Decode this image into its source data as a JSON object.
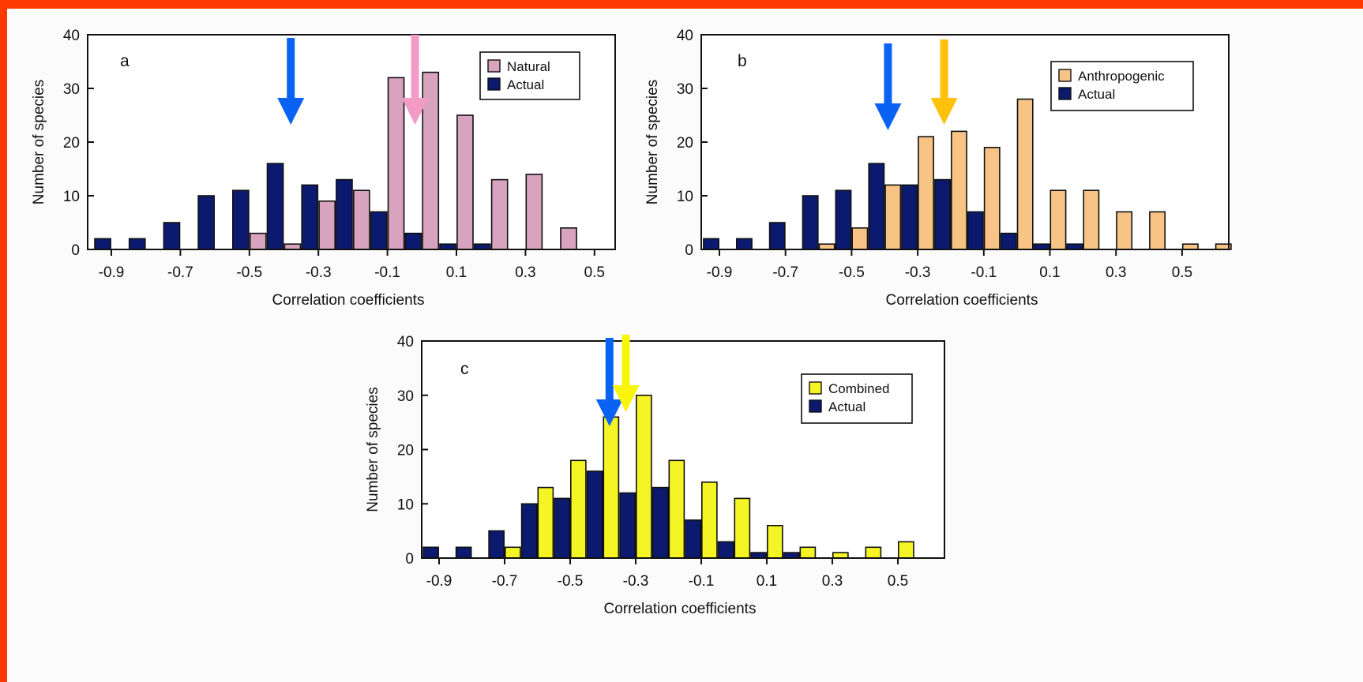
{
  "colors": {
    "frame": "#ff3a00",
    "actual": "#0b1a6e",
    "natural": "#d7a3bf",
    "anthropogenic": "#f7c485",
    "combined": "#f5f526",
    "arrow_actual": "#0a62f5",
    "arrow_natural": "#f39ac6",
    "arrow_anthropogenic": "#ffc10a",
    "arrow_combined": "#f8f508"
  },
  "chart_data": [
    {
      "type": "bar",
      "panel": "a",
      "xlabel": "Correlation coefficients",
      "ylabel": "Number of species",
      "ylim": [
        0,
        40
      ],
      "yticks": [
        0,
        10,
        20,
        30,
        40
      ],
      "xticks": [
        "-0.9",
        "-0.7",
        "-0.5",
        "-0.3",
        "-0.1",
        "0.1",
        "0.3",
        "0.5"
      ],
      "bins": [
        -0.9,
        -0.8,
        -0.7,
        -0.6,
        -0.5,
        -0.4,
        -0.3,
        -0.2,
        -0.1,
        0.0,
        0.1,
        0.2,
        0.3,
        0.4,
        0.5,
        0.6
      ],
      "series": [
        {
          "name": "Natural",
          "color_key": "natural",
          "values": [
            0,
            0,
            0,
            0,
            3,
            1,
            9,
            11,
            32,
            33,
            25,
            13,
            14,
            4,
            0,
            0
          ]
        },
        {
          "name": "Actual",
          "color_key": "actual",
          "values": [
            2,
            2,
            5,
            10,
            11,
            16,
            12,
            13,
            7,
            3,
            1,
            1,
            0,
            0,
            0,
            0
          ]
        }
      ],
      "arrows": [
        {
          "x": -0.38,
          "color_key": "arrow_actual"
        },
        {
          "x": -0.02,
          "color_key": "arrow_natural"
        }
      ],
      "legend": "top-right"
    },
    {
      "type": "bar",
      "panel": "b",
      "xlabel": "Correlation coefficients",
      "ylabel": "Number of species",
      "ylim": [
        0,
        40
      ],
      "yticks": [
        0,
        10,
        20,
        30,
        40
      ],
      "xticks": [
        "-0.9",
        "-0.7",
        "-0.5",
        "-0.3",
        "-0.1",
        "0.1",
        "0.3",
        "0.5"
      ],
      "bins": [
        -0.9,
        -0.8,
        -0.7,
        -0.6,
        -0.5,
        -0.4,
        -0.3,
        -0.2,
        -0.1,
        0.0,
        0.1,
        0.2,
        0.3,
        0.4,
        0.5,
        0.6
      ],
      "series": [
        {
          "name": "Anthropogenic",
          "color_key": "anthropogenic",
          "values": [
            0,
            0,
            0,
            1,
            4,
            12,
            21,
            22,
            19,
            28,
            11,
            11,
            7,
            7,
            1,
            1
          ]
        },
        {
          "name": "Actual",
          "color_key": "actual",
          "values": [
            2,
            2,
            5,
            10,
            11,
            16,
            12,
            13,
            7,
            3,
            1,
            1,
            0,
            0,
            0,
            0
          ]
        }
      ],
      "arrows": [
        {
          "x": -0.39,
          "color_key": "arrow_actual"
        },
        {
          "x": -0.22,
          "color_key": "arrow_anthropogenic"
        }
      ],
      "legend": "top-right"
    },
    {
      "type": "bar",
      "panel": "c",
      "xlabel": "Correlation coefficients",
      "ylabel": "Number of species",
      "ylim": [
        0,
        40
      ],
      "yticks": [
        0,
        10,
        20,
        30,
        40
      ],
      "xticks": [
        "-0.9",
        "-0.7",
        "-0.5",
        "-0.3",
        "-0.1",
        "0.1",
        "0.3",
        "0.5"
      ],
      "bins": [
        -0.9,
        -0.8,
        -0.7,
        -0.6,
        -0.5,
        -0.4,
        -0.3,
        -0.2,
        -0.1,
        0.0,
        0.1,
        0.2,
        0.3,
        0.4,
        0.5
      ],
      "series": [
        {
          "name": "Combined",
          "color_key": "combined",
          "values": [
            0,
            0,
            2,
            13,
            18,
            26,
            30,
            18,
            14,
            11,
            6,
            2,
            1,
            2,
            3
          ]
        },
        {
          "name": "Actual",
          "color_key": "actual",
          "values": [
            2,
            2,
            5,
            10,
            11,
            16,
            12,
            13,
            7,
            3,
            1,
            1,
            0,
            0,
            0
          ]
        }
      ],
      "arrows": [
        {
          "x": -0.38,
          "color_key": "arrow_actual"
        },
        {
          "x": -0.33,
          "color_key": "arrow_combined"
        }
      ],
      "legend": "top-right"
    }
  ]
}
